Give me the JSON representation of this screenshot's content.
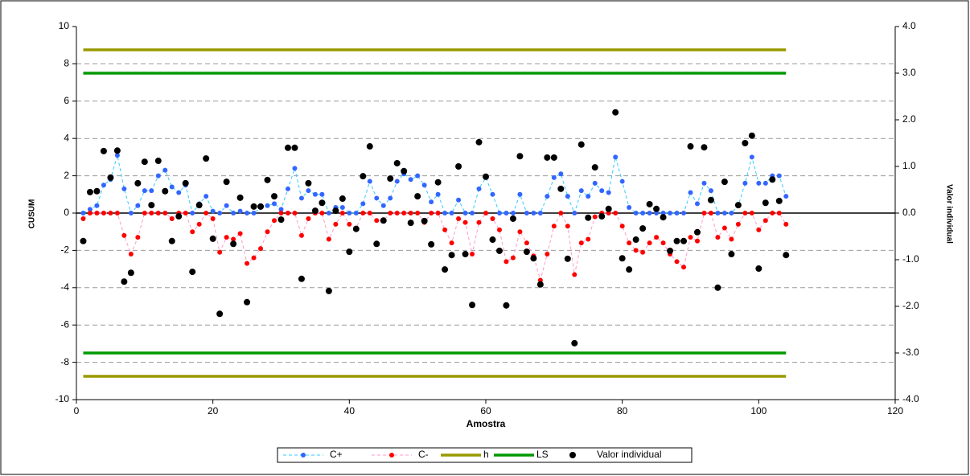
{
  "chart_data": {
    "type": "line",
    "x_label": "Amostra",
    "y_label": "CUSUM",
    "y2_label": "Valor individual",
    "xlim": [
      0,
      120
    ],
    "xticks": [
      0,
      20,
      40,
      60,
      80,
      100,
      120
    ],
    "ylim": [
      -10,
      10
    ],
    "yticks": [
      -10,
      -8,
      -6,
      -4,
      -2,
      0,
      2,
      4,
      6,
      8,
      10
    ],
    "y2lim": [
      -4,
      4
    ],
    "y2ticks": [
      {
        "value": -4,
        "label": "-4.0"
      },
      {
        "value": -3,
        "label": "-3.0"
      },
      {
        "value": -2,
        "label": "-2.0"
      },
      {
        "value": -1,
        "label": "-1.0"
      },
      {
        "value": 0,
        "label": "0.0"
      },
      {
        "value": 1,
        "label": "1.0"
      },
      {
        "value": 2,
        "label": "2.0"
      },
      {
        "value": 3,
        "label": "3.0"
      },
      {
        "value": 4,
        "label": "4.0"
      }
    ],
    "grid": true,
    "legend": "bottom",
    "x": [
      1,
      2,
      3,
      4,
      5,
      6,
      7,
      8,
      9,
      10,
      11,
      12,
      13,
      14,
      15,
      16,
      17,
      18,
      19,
      20,
      21,
      22,
      23,
      24,
      25,
      26,
      27,
      28,
      29,
      30,
      31,
      32,
      33,
      34,
      35,
      36,
      37,
      38,
      39,
      40,
      41,
      42,
      43,
      44,
      45,
      46,
      47,
      48,
      49,
      50,
      51,
      52,
      53,
      54,
      55,
      56,
      57,
      58,
      59,
      60,
      61,
      62,
      63,
      64,
      65,
      66,
      67,
      68,
      69,
      70,
      71,
      72,
      73,
      74,
      75,
      76,
      77,
      78,
      79,
      80,
      81,
      82,
      83,
      84,
      85,
      86,
      87,
      88,
      89,
      90,
      91,
      92,
      93,
      94,
      95,
      96,
      97,
      98,
      99,
      100,
      101,
      102,
      103,
      104
    ],
    "series": [
      {
        "name": "C+",
        "kind": "cusum",
        "color": "#3366ff",
        "line_color": "#33ccff",
        "values": [
          0,
          0.2,
          0.4,
          1.5,
          1.8,
          3.1,
          1.3,
          0,
          0.4,
          1.2,
          1.2,
          2.0,
          2.3,
          1.4,
          1.1,
          1.5,
          0,
          0.5,
          0.9,
          0.1,
          0,
          0.4,
          0,
          0.1,
          0,
          0,
          0.3,
          0.4,
          0.5,
          0.2,
          1.3,
          2.4,
          0.8,
          1.2,
          1.0,
          1.0,
          0,
          0.3,
          0.3,
          0,
          0,
          0.5,
          1.7,
          0.8,
          0.4,
          0.8,
          1.7,
          2.1,
          1.8,
          2.0,
          1.5,
          0.6,
          1.0,
          0,
          0,
          0.7,
          0,
          0,
          1.3,
          1.9,
          1.0,
          0,
          0,
          0,
          1.0,
          0,
          0,
          0,
          0.9,
          1.9,
          2.1,
          0.9,
          0,
          1.2,
          0.9,
          1.6,
          1.2,
          1.1,
          3.0,
          1.7,
          0.3,
          0,
          0,
          0,
          0,
          0,
          0,
          0,
          0,
          1.1,
          0.5,
          1.6,
          1.2,
          0,
          0,
          0,
          0.4,
          1.6,
          3.0,
          1.6,
          1.6,
          2.0,
          2.0,
          0.9
        ]
      },
      {
        "name": "C-",
        "kind": "cusum",
        "color": "#ff0000",
        "line_color": "#ff99cc",
        "values": [
          -0.3,
          0,
          0,
          0,
          0,
          0,
          -1.2,
          -2.2,
          -1.3,
          0,
          0,
          0,
          0,
          -0.3,
          0,
          0,
          -1.0,
          -0.6,
          0,
          -0.3,
          -2.1,
          -1.3,
          -1.4,
          -1.1,
          -2.7,
          -2.4,
          -1.9,
          -1.0,
          -0.4,
          0,
          0,
          0,
          -1.2,
          -0.3,
          0,
          0,
          -1.4,
          -0.6,
          0,
          -0.6,
          -0.8,
          0,
          0,
          -0.4,
          -0.4,
          0,
          0,
          0,
          0,
          0,
          -0.5,
          0,
          0,
          -0.9,
          -1.6,
          -0.3,
          -0.5,
          -2.2,
          -0.5,
          0,
          -0.3,
          -0.9,
          -2.6,
          -2.4,
          -1.0,
          -1.6,
          -2.3,
          -3.6,
          -2.2,
          -0.7,
          0,
          -0.7,
          -3.3,
          -1.6,
          -1.4,
          -0.2,
          0,
          0,
          0,
          -0.7,
          -1.6,
          -2.0,
          -2.1,
          -1.6,
          -1.3,
          -1.6,
          -2.2,
          -2.6,
          -2.9,
          -1.3,
          -1.5,
          0,
          0,
          -1.3,
          -0.8,
          -1.4,
          -0.6,
          0,
          0,
          -0.9,
          -0.4,
          0,
          0,
          -0.6
        ]
      },
      {
        "name": "h",
        "kind": "limit",
        "color": "#999900",
        "x": [
          1,
          104
        ],
        "levels": [
          8.75,
          -8.75
        ]
      },
      {
        "name": "LS",
        "kind": "limit",
        "color": "#009900",
        "x": [
          1,
          104
        ],
        "levels": [
          7.5,
          -7.5
        ]
      },
      {
        "name": "Valor individual",
        "kind": "points",
        "axis": "y2",
        "color": "#000000",
        "values": [
          -0.6,
          0.45,
          0.47,
          1.33,
          0.76,
          1.34,
          -1.47,
          -1.28,
          0.64,
          1.1,
          0.17,
          1.12,
          0.47,
          -0.6,
          -0.07,
          0.64,
          -1.26,
          0.17,
          1.17,
          -0.55,
          -2.16,
          0.67,
          -0.66,
          0.33,
          -1.91,
          0.14,
          0.14,
          0.71,
          0.36,
          -0.14,
          1.4,
          1.4,
          -1.41,
          0.64,
          0.05,
          0.22,
          -1.67,
          0.05,
          0.31,
          -0.83,
          -0.34,
          0.79,
          1.43,
          -0.66,
          -0.16,
          0.74,
          1.07,
          0.9,
          -0.21,
          0.36,
          -0.17,
          -0.67,
          0.66,
          -1.21,
          -0.9,
          1.0,
          -0.88,
          -1.97,
          1.52,
          0.78,
          -0.57,
          -0.81,
          -1.98,
          -0.12,
          1.22,
          -0.83,
          -0.97,
          -1.53,
          1.19,
          1.19,
          0.52,
          -0.98,
          -2.79,
          1.47,
          -0.1,
          0.98,
          -0.07,
          0.09,
          2.16,
          -0.97,
          -1.21,
          -0.57,
          -0.33,
          0.19,
          0.09,
          -0.09,
          -0.81,
          -0.6,
          -0.6,
          1.43,
          -0.41,
          1.41,
          0.28,
          -1.6,
          0.67,
          -0.88,
          0.17,
          1.5,
          1.66,
          -1.19,
          0.22,
          0.72,
          0.26,
          -0.9
        ]
      }
    ]
  }
}
